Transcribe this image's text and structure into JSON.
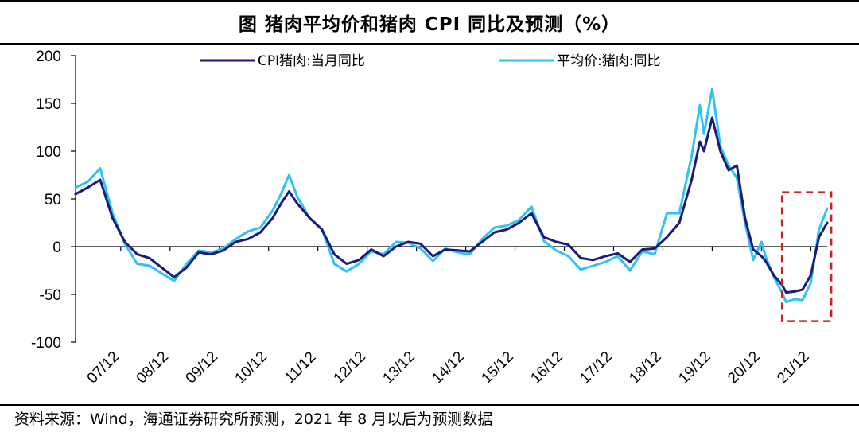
{
  "title": "图  猪肉平均价和猪肉 CPI 同比及预测（%）",
  "source": "资料来源：Wind，海通证券研究所预测，2021 年 8 月以后为预测数据",
  "chart_data": {
    "type": "line",
    "ylim": [
      -100,
      200
    ],
    "yticks": [
      "200",
      "150",
      "100",
      "50",
      "0",
      "-50",
      "-100"
    ],
    "ytick_values": [
      200,
      150,
      100,
      50,
      0,
      -50,
      -100
    ],
    "xticks": [
      "07/12",
      "08/12",
      "09/12",
      "10/12",
      "11/12",
      "12/12",
      "13/12",
      "14/12",
      "15/12",
      "16/12",
      "17/12",
      "18/12",
      "19/12",
      "20/12",
      "21/12"
    ],
    "x_start": "2007-01",
    "x_end": "2022-04",
    "legend_position": "top",
    "grid": false,
    "highlight_box": {
      "from": "2021-05",
      "to": "2022-05",
      "ymin": -78,
      "ymax": 57
    },
    "series": [
      {
        "name": "CPI猪肉:当月同比",
        "color": "#1a1a7a",
        "points": [
          [
            "2007-01",
            55
          ],
          [
            "2007-04",
            62
          ],
          [
            "2007-07",
            70
          ],
          [
            "2007-10",
            30
          ],
          [
            "2008-01",
            5
          ],
          [
            "2008-04",
            -8
          ],
          [
            "2008-07",
            -12
          ],
          [
            "2008-10",
            -22
          ],
          [
            "2009-01",
            -32
          ],
          [
            "2009-04",
            -22
          ],
          [
            "2009-07",
            -6
          ],
          [
            "2009-10",
            -8
          ],
          [
            "2010-01",
            -4
          ],
          [
            "2010-04",
            5
          ],
          [
            "2010-07",
            8
          ],
          [
            "2010-10",
            15
          ],
          [
            "2011-01",
            30
          ],
          [
            "2011-03",
            45
          ],
          [
            "2011-05",
            58
          ],
          [
            "2011-07",
            45
          ],
          [
            "2011-10",
            30
          ],
          [
            "2012-01",
            18
          ],
          [
            "2012-04",
            -8
          ],
          [
            "2012-07",
            -18
          ],
          [
            "2012-10",
            -14
          ],
          [
            "2013-01",
            -3
          ],
          [
            "2013-04",
            -10
          ],
          [
            "2013-07",
            0
          ],
          [
            "2013-10",
            5
          ],
          [
            "2014-01",
            3
          ],
          [
            "2014-04",
            -10
          ],
          [
            "2014-07",
            -3
          ],
          [
            "2014-10",
            -4
          ],
          [
            "2015-01",
            -5
          ],
          [
            "2015-04",
            5
          ],
          [
            "2015-07",
            15
          ],
          [
            "2015-10",
            18
          ],
          [
            "2016-01",
            25
          ],
          [
            "2016-04",
            35
          ],
          [
            "2016-07",
            10
          ],
          [
            "2016-10",
            5
          ],
          [
            "2017-01",
            2
          ],
          [
            "2017-04",
            -12
          ],
          [
            "2017-07",
            -14
          ],
          [
            "2017-10",
            -10
          ],
          [
            "2018-01",
            -7
          ],
          [
            "2018-04",
            -16
          ],
          [
            "2018-07",
            -3
          ],
          [
            "2018-10",
            -2
          ],
          [
            "2019-01",
            10
          ],
          [
            "2019-04",
            25
          ],
          [
            "2019-07",
            70
          ],
          [
            "2019-09",
            110
          ],
          [
            "2019-10",
            100
          ],
          [
            "2019-12",
            135
          ],
          [
            "2020-02",
            100
          ],
          [
            "2020-04",
            80
          ],
          [
            "2020-06",
            85
          ],
          [
            "2020-08",
            30
          ],
          [
            "2020-10",
            -3
          ],
          [
            "2020-12",
            -10
          ],
          [
            "2021-01",
            -15
          ],
          [
            "2021-03",
            -30
          ],
          [
            "2021-05",
            -40
          ],
          [
            "2021-06",
            -48
          ],
          [
            "2021-08",
            -47
          ],
          [
            "2021-10",
            -45
          ],
          [
            "2021-12",
            -30
          ],
          [
            "2022-02",
            10
          ],
          [
            "2022-04",
            25
          ]
        ]
      },
      {
        "name": "平均价:猪肉:同比",
        "color": "#2ec3f0",
        "points": [
          [
            "2007-01",
            62
          ],
          [
            "2007-04",
            68
          ],
          [
            "2007-07",
            82
          ],
          [
            "2007-10",
            35
          ],
          [
            "2008-01",
            3
          ],
          [
            "2008-04",
            -18
          ],
          [
            "2008-07",
            -20
          ],
          [
            "2008-10",
            -28
          ],
          [
            "2009-01",
            -36
          ],
          [
            "2009-04",
            -18
          ],
          [
            "2009-07",
            -4
          ],
          [
            "2009-10",
            -6
          ],
          [
            "2010-01",
            -2
          ],
          [
            "2010-04",
            8
          ],
          [
            "2010-07",
            16
          ],
          [
            "2010-10",
            20
          ],
          [
            "2011-01",
            38
          ],
          [
            "2011-03",
            55
          ],
          [
            "2011-05",
            75
          ],
          [
            "2011-07",
            52
          ],
          [
            "2011-10",
            30
          ],
          [
            "2012-01",
            18
          ],
          [
            "2012-04",
            -18
          ],
          [
            "2012-07",
            -26
          ],
          [
            "2012-10",
            -18
          ],
          [
            "2013-01",
            -5
          ],
          [
            "2013-04",
            -8
          ],
          [
            "2013-07",
            5
          ],
          [
            "2013-10",
            4
          ],
          [
            "2014-01",
            -2
          ],
          [
            "2014-04",
            -15
          ],
          [
            "2014-07",
            -2
          ],
          [
            "2014-10",
            -6
          ],
          [
            "2015-01",
            -8
          ],
          [
            "2015-04",
            8
          ],
          [
            "2015-07",
            20
          ],
          [
            "2015-10",
            22
          ],
          [
            "2016-01",
            28
          ],
          [
            "2016-04",
            42
          ],
          [
            "2016-07",
            6
          ],
          [
            "2016-10",
            -4
          ],
          [
            "2017-01",
            -10
          ],
          [
            "2017-04",
            -24
          ],
          [
            "2017-07",
            -20
          ],
          [
            "2017-10",
            -16
          ],
          [
            "2018-01",
            -10
          ],
          [
            "2018-04",
            -25
          ],
          [
            "2018-07",
            -5
          ],
          [
            "2018-10",
            -8
          ],
          [
            "2019-01",
            35
          ],
          [
            "2019-04",
            35
          ],
          [
            "2019-07",
            95
          ],
          [
            "2019-09",
            148
          ],
          [
            "2019-10",
            118
          ],
          [
            "2019-12",
            165
          ],
          [
            "2020-02",
            105
          ],
          [
            "2020-04",
            85
          ],
          [
            "2020-06",
            72
          ],
          [
            "2020-08",
            25
          ],
          [
            "2020-10",
            -14
          ],
          [
            "2020-12",
            5
          ],
          [
            "2021-01",
            -10
          ],
          [
            "2021-03",
            -32
          ],
          [
            "2021-05",
            -48
          ],
          [
            "2021-06",
            -58
          ],
          [
            "2021-08",
            -55
          ],
          [
            "2021-10",
            -56
          ],
          [
            "2021-12",
            -38
          ],
          [
            "2022-02",
            18
          ],
          [
            "2022-04",
            40
          ]
        ]
      }
    ]
  }
}
